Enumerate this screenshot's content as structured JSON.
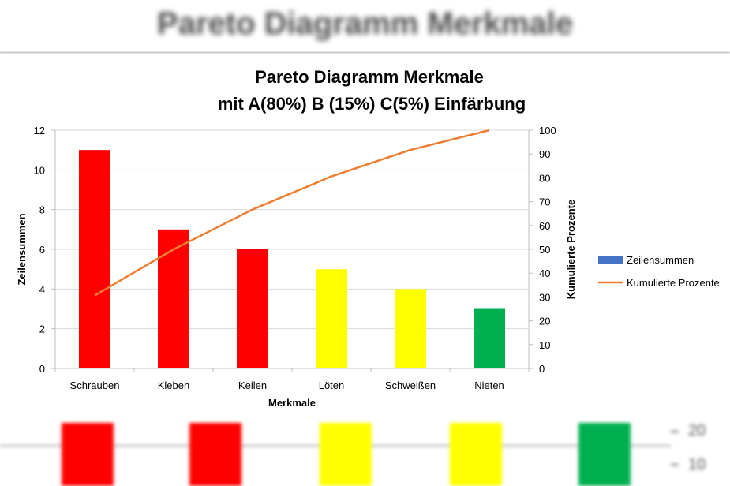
{
  "background": {
    "title": "Pareto Diagramm Merkmale",
    "axis_labels": [
      "20",
      "10"
    ],
    "bar_colors": [
      "#ff0000",
      "#ff0000",
      "#ffff00",
      "#ffff00",
      "#00b050"
    ]
  },
  "chart_data": {
    "type": "bar",
    "title": "Pareto Diagramm Merkmale",
    "subtitle": "mit A(80%) B (15%) C(5%) Einfärbung",
    "xlabel": "Merkmale",
    "ylabel": "Zeilensummen",
    "y2label": "Kumulierte Prozente",
    "ylim": [
      0,
      12
    ],
    "y2lim": [
      0,
      100
    ],
    "yticks": [
      0,
      2,
      4,
      6,
      8,
      10,
      12
    ],
    "y2ticks": [
      0,
      10,
      20,
      30,
      40,
      50,
      60,
      70,
      80,
      90,
      100
    ],
    "categories": [
      "Schrauben",
      "Kleben",
      "Keilen",
      "Löten",
      "Schweißen",
      "Nieten"
    ],
    "grid": "horizontal",
    "legend_position": "right",
    "series": [
      {
        "name": "Zeilensummen",
        "type": "bar",
        "axis": "left",
        "legend_color": "#4472c4",
        "values": [
          11,
          7,
          6,
          5,
          4,
          3
        ],
        "bar_colors": [
          "#ff0000",
          "#ff0000",
          "#ff0000",
          "#ffff00",
          "#ffff00",
          "#00b050"
        ]
      },
      {
        "name": "Kumulierte Prozente",
        "type": "line",
        "axis": "right",
        "color": "#ed7d31",
        "values": [
          30.6,
          50.0,
          66.7,
          80.6,
          91.7,
          100.0
        ]
      }
    ]
  }
}
